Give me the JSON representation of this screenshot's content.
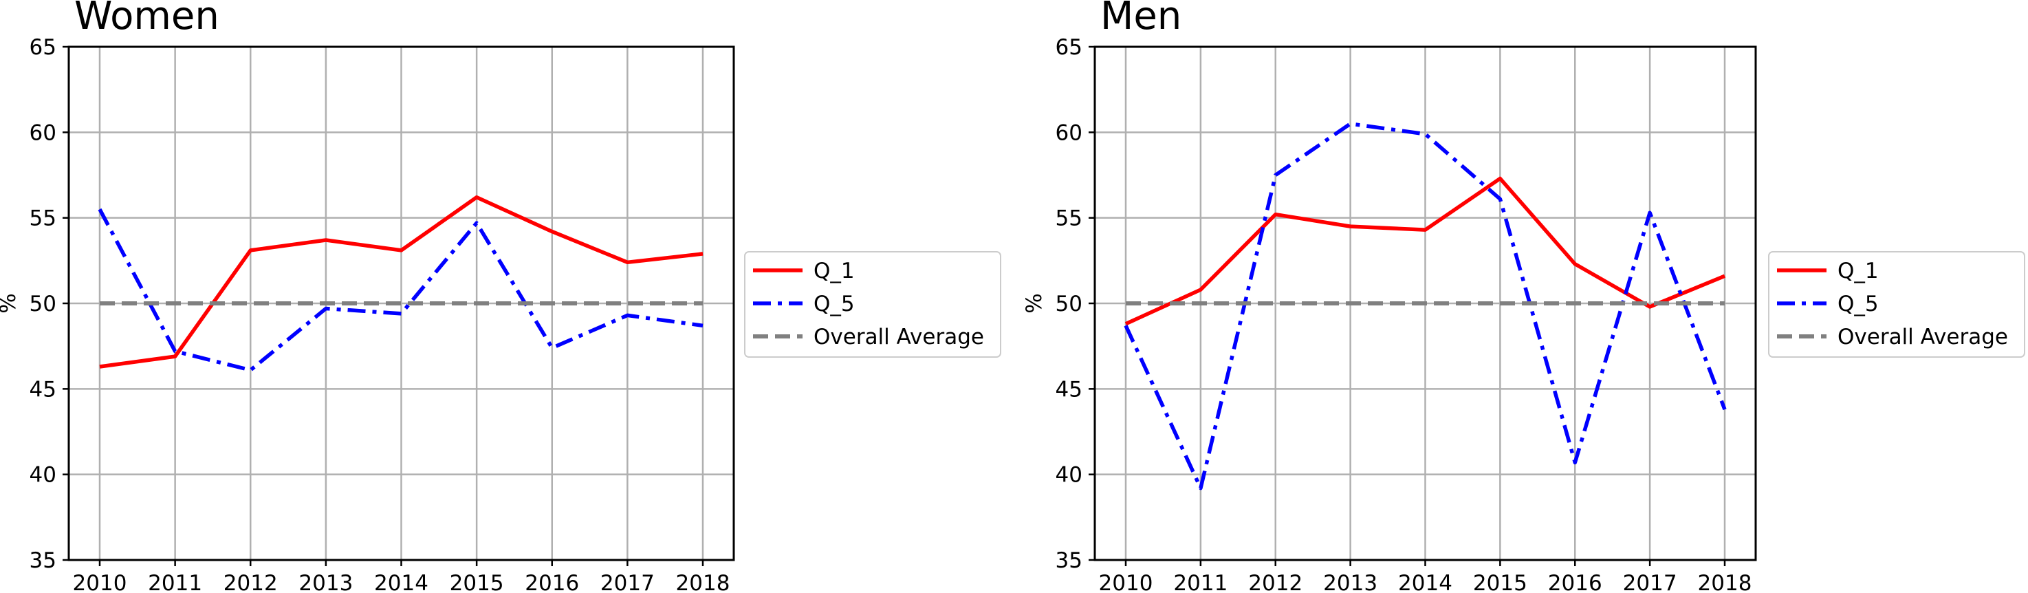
{
  "chart_data": [
    {
      "type": "line",
      "title": "Women",
      "ylabel": "%",
      "xlabel": "",
      "ylim": [
        35,
        65
      ],
      "yticks": [
        35,
        40,
        45,
        50,
        55,
        60,
        65
      ],
      "x": [
        2010,
        2011,
        2012,
        2013,
        2014,
        2015,
        2016,
        2017,
        2018
      ],
      "grid": true,
      "legend_position": "right",
      "series": [
        {
          "name": "Q_1",
          "color": "#ff0000",
          "style": "solid",
          "values": [
            46.3,
            46.9,
            53.1,
            53.7,
            53.1,
            56.2,
            54.2,
            52.4,
            52.9
          ]
        },
        {
          "name": "Q_5",
          "color": "#0000ff",
          "style": "dashdot",
          "values": [
            55.5,
            47.2,
            46.1,
            49.7,
            49.4,
            54.7,
            47.4,
            49.3,
            48.7
          ]
        },
        {
          "name": "Overall Average",
          "color": "#808080",
          "style": "dashed",
          "values": [
            50,
            50,
            50,
            50,
            50,
            50,
            50,
            50,
            50
          ]
        }
      ]
    },
    {
      "type": "line",
      "title": "Men",
      "ylabel": "%",
      "xlabel": "",
      "ylim": [
        35,
        65
      ],
      "yticks": [
        35,
        40,
        45,
        50,
        55,
        60,
        65
      ],
      "x": [
        2010,
        2011,
        2012,
        2013,
        2014,
        2015,
        2016,
        2017,
        2018
      ],
      "grid": true,
      "legend_position": "right",
      "series": [
        {
          "name": "Q_1",
          "color": "#ff0000",
          "style": "solid",
          "values": [
            48.8,
            50.8,
            55.2,
            54.5,
            54.3,
            57.3,
            52.3,
            49.8,
            51.6
          ]
        },
        {
          "name": "Q_5",
          "color": "#0000ff",
          "style": "dashdot",
          "values": [
            48.7,
            39.2,
            57.5,
            60.5,
            59.9,
            56.1,
            40.7,
            55.3,
            43.8
          ]
        },
        {
          "name": "Overall Average",
          "color": "#808080",
          "style": "dashed",
          "values": [
            50,
            50,
            50,
            50,
            50,
            50,
            50,
            50,
            50
          ]
        }
      ]
    }
  ]
}
